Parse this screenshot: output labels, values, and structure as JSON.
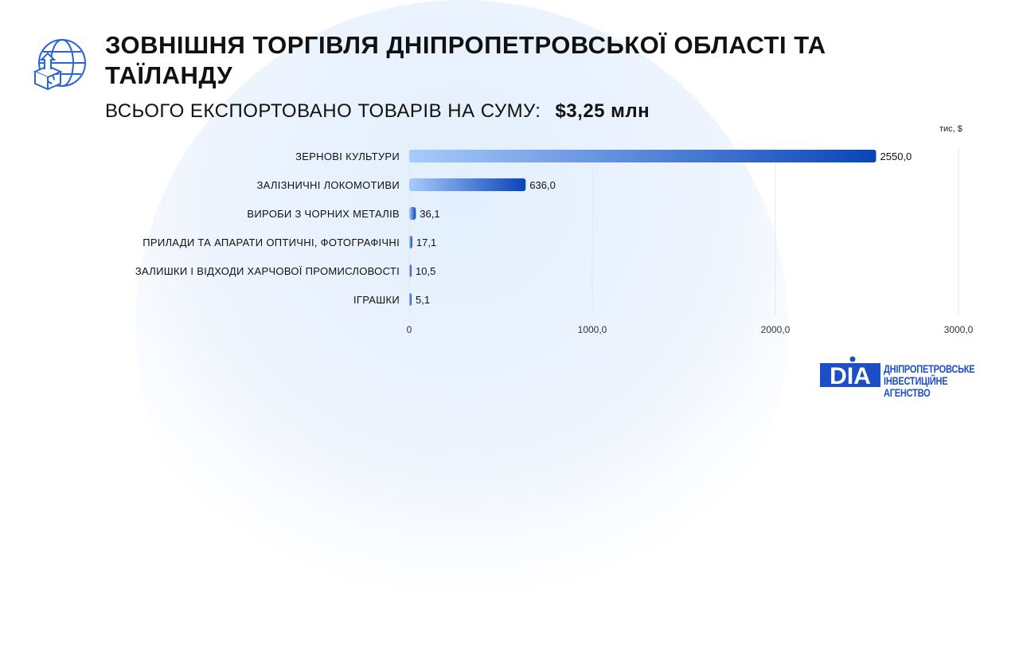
{
  "header": {
    "title": "ЗОВНІШНЯ ТОРГІВЛЯ ДНІПРОПЕТРОВСЬКОЇ ОБЛАСТІ ТА ТАЇЛАНДУ",
    "subtitle_label": "ВСЬОГО ЕКСПОРТОВАНО ТОВАРІВ НА СУМУ:",
    "subtitle_value": "$3,25 млн",
    "icon": "globe-export-box-icon"
  },
  "chart_data": {
    "type": "bar",
    "orientation": "horizontal",
    "unit_label": "тис, $",
    "categories": [
      "ЗЕРНОВІ КУЛЬТУРИ",
      "ЗАЛІЗНИЧНІ ЛОКОМОТИВИ",
      "ВИРОБИ З ЧОРНИХ МЕТАЛІВ",
      "ПРИЛАДИ ТА АПАРАТИ ОПТИЧНІ, ФОТОГРАФІЧНІ",
      "ЗАЛИШКИ І ВІДХОДИ ХАРЧОВОЇ ПРОМИСЛОВОСТІ",
      "ІГРАШКИ"
    ],
    "values": [
      2550.0,
      636.0,
      36.1,
      17.1,
      10.5,
      5.1
    ],
    "data_labels": [
      "2550,0",
      "636,0",
      "36,1",
      "17,1",
      "10,5",
      "5,1"
    ],
    "xlim": [
      0,
      3000
    ],
    "xticks": [
      0,
      1000,
      2000,
      3000
    ],
    "xtick_labels": [
      "0",
      "1000,0",
      "2000,0",
      "3000,0"
    ],
    "grid": true,
    "colors": {
      "start": "#a7cbfb",
      "end": "#0a44b8"
    }
  },
  "logo": {
    "mark": "DIA",
    "line1": "ДНІПРОПЕТРОВСЬКЕ",
    "line2": "ІНВЕСТИЦІЙНЕ АГЕНСТВО",
    "color": "#1d4fc4"
  }
}
